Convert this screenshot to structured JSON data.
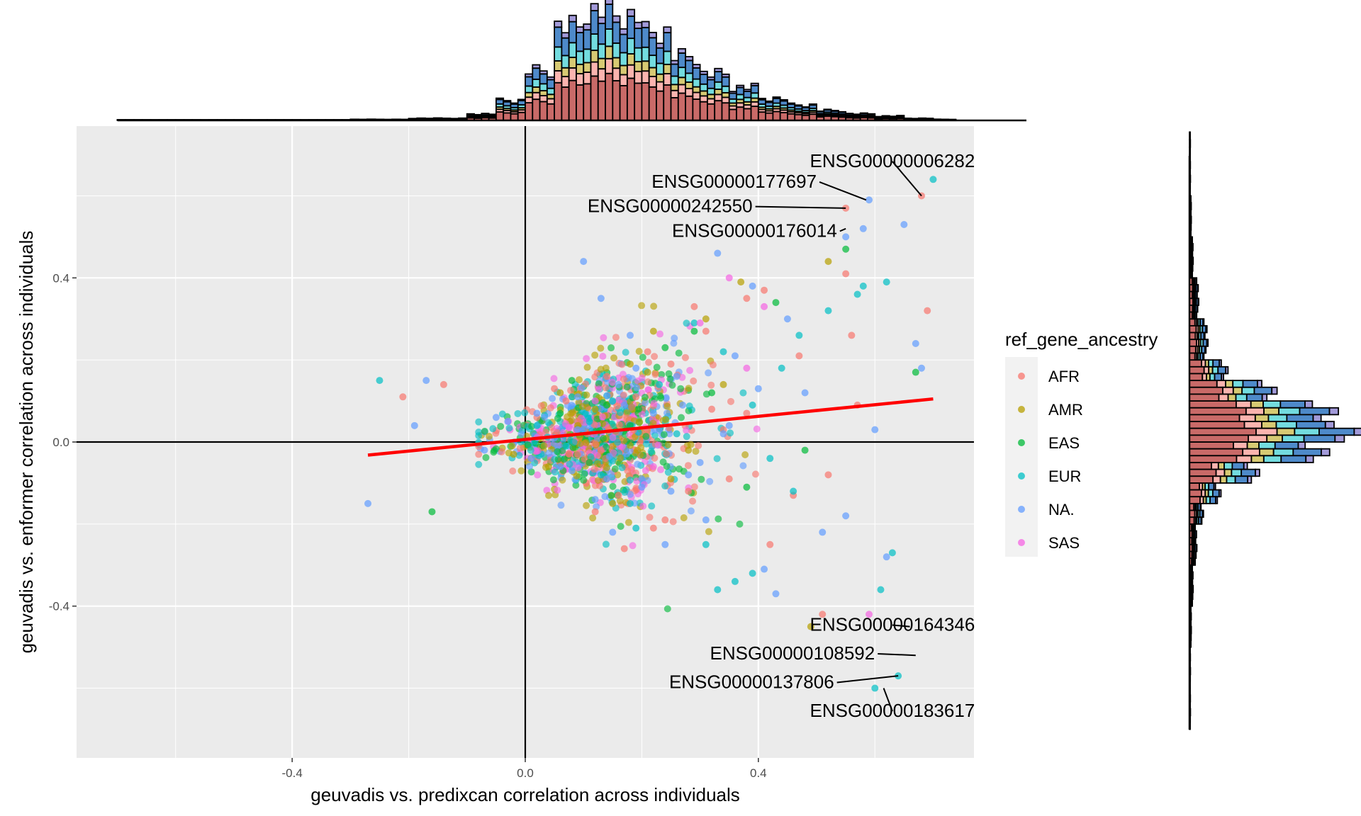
{
  "chart_data": {
    "type": "scatter",
    "title": "",
    "xlabel": "geuvadis vs. predixcan correlation across individuals",
    "ylabel": "geuvadis vs. enformer correlation across individuals",
    "xlim": [
      -0.77,
      0.77
    ],
    "ylim": [
      -0.77,
      0.77
    ],
    "xticks": [
      {
        "value": -0.4,
        "label": "-0.4"
      },
      {
        "value": 0.0,
        "label": "0.0"
      },
      {
        "value": 0.4,
        "label": "0.4"
      }
    ],
    "yticks": [
      {
        "value": -0.4,
        "label": "-0.4"
      },
      {
        "value": 0.0,
        "label": "0.0"
      },
      {
        "value": 0.4,
        "label": "0.4"
      }
    ],
    "grid": true,
    "reference_lines": {
      "x": 0,
      "y": 0
    },
    "trend_line": {
      "color": "#ff0000",
      "x": [
        -0.27,
        0.7
      ],
      "y": [
        -0.032,
        0.105
      ]
    },
    "legend": {
      "title": "ref_gene_ancestry",
      "position": "right",
      "entries": [
        {
          "name": "AFR",
          "color": "#F8766D"
        },
        {
          "name": "AMR",
          "color": "#B79F00"
        },
        {
          "name": "EAS",
          "color": "#00BA38"
        },
        {
          "name": "EUR",
          "color": "#00BFC4"
        },
        {
          "name": "NA.",
          "color": "#619CFF"
        },
        {
          "name": "SAS",
          "color": "#F564E3"
        }
      ]
    },
    "series": [
      {
        "name": "AFR",
        "color": "#F8766D",
        "x": [
          0.68,
          0.55,
          0.69,
          0.47,
          0.56,
          0.38,
          0.41,
          0.55,
          -0.14,
          -0.21,
          0.31,
          0.32,
          0.35,
          0.46,
          0.51,
          0.42,
          0.17,
          0.22,
          0.24,
          0.28,
          0.05,
          0.09,
          0.13,
          0.19,
          0.34,
          0.38,
          0.52,
          0.57,
          0.25,
          0.29,
          0.12,
          0.16,
          0.09,
          0.02,
          0.07,
          0.11,
          0.14,
          0.21
        ],
        "y": [
          0.6,
          0.57,
          0.32,
          0.21,
          0.26,
          0.35,
          0.37,
          0.41,
          0.14,
          0.11,
          0.27,
          0.08,
          -0.09,
          -0.13,
          -0.42,
          -0.25,
          -0.26,
          -0.21,
          -0.19,
          -0.12,
          0.13,
          0.05,
          -0.02,
          0.11,
          0.03,
          0.07,
          -0.08,
          0.09,
          0.19,
          0.33,
          -0.17,
          -0.13,
          -0.03,
          0.06,
          0.1,
          -0.05,
          0.16,
          0.22
        ]
      },
      {
        "name": "AMR",
        "color": "#B79F00",
        "x": [
          0.52,
          0.49,
          0.37,
          0.31,
          0.22,
          0.18,
          0.12,
          0.06,
          -0.02,
          0.25,
          0.15,
          0.09,
          0.34,
          0.28,
          0.04,
          0.21
        ],
        "y": [
          0.44,
          -0.45,
          0.39,
          0.3,
          0.27,
          0.19,
          0.08,
          0.12,
          -0.03,
          -0.09,
          -0.15,
          0.04,
          0.14,
          -0.02,
          -0.06,
          0.17
        ]
      },
      {
        "name": "EAS",
        "color": "#00BA38",
        "x": [
          0.55,
          0.67,
          0.29,
          0.43,
          0.08,
          0.18,
          0.11,
          -0.16,
          0.32,
          0.24,
          0.48,
          0.14,
          0.06,
          0.38
        ],
        "y": [
          0.47,
          0.17,
          0.27,
          0.34,
          0.15,
          0.04,
          -0.05,
          -0.17,
          0.12,
          0.23,
          -0.02,
          0.09,
          0.07,
          -0.11
        ]
      },
      {
        "name": "EUR",
        "color": "#00BFC4",
        "x": [
          0.7,
          0.64,
          0.6,
          0.63,
          0.61,
          -0.25,
          0.58,
          0.62,
          0.57,
          0.52,
          0.47,
          0.44,
          0.39,
          0.36,
          0.33,
          0.29,
          0.23,
          0.19,
          0.15,
          0.11,
          0.07,
          0.02,
          0.42,
          0.46,
          0.34,
          0.26,
          0.13,
          0.08,
          0.18,
          0.39,
          0.31
        ],
        "y": [
          0.64,
          -0.57,
          -0.6,
          -0.27,
          -0.36,
          0.15,
          0.38,
          0.39,
          0.36,
          0.32,
          0.26,
          0.18,
          -0.32,
          -0.34,
          -0.36,
          0.29,
          0.14,
          -0.21,
          0.1,
          0.05,
          -0.01,
          0.04,
          -0.04,
          -0.12,
          0.22,
          0.02,
          -0.08,
          0.11,
          -0.15,
          0.09,
          -0.25
        ]
      },
      {
        "name": "NA.",
        "color": "#619CFF",
        "x": [
          0.59,
          0.55,
          0.58,
          0.65,
          0.67,
          0.68,
          -0.27,
          -0.19,
          -0.17,
          0.1,
          0.13,
          0.33,
          0.45,
          0.39,
          0.43,
          0.51,
          0.6,
          0.08,
          0.17,
          0.2,
          0.26,
          0.31,
          0.36,
          0.4,
          0.05,
          0.01,
          -0.03,
          -0.07,
          0.12,
          0.22,
          0.28,
          0.34,
          0.15,
          0.24,
          0.02,
          0.09,
          0.18,
          0.3,
          0.41,
          0.48,
          0.55,
          0.62,
          0.09,
          0.14,
          0.19,
          0.27,
          -0.05,
          0.06,
          0.16,
          0.25,
          0.35
        ],
        "y": [
          0.59,
          0.5,
          0.52,
          0.53,
          0.24,
          0.18,
          -0.15,
          0.04,
          0.15,
          0.44,
          0.35,
          0.46,
          0.3,
          0.38,
          -0.37,
          -0.22,
          0.03,
          -0.07,
          0.09,
          -0.11,
          0.16,
          -0.19,
          0.21,
          0.13,
          0.01,
          -0.04,
          0.05,
          -0.02,
          -0.14,
          0.07,
          -0.08,
          0.02,
          -0.22,
          -0.25,
          0.07,
          0.11,
          0.26,
          -0.05,
          -0.31,
          0.12,
          -0.18,
          -0.28,
          0.03,
          -0.09,
          0.18,
          0.09,
          0.06,
          -0.06,
          0.14,
          -0.12,
          0.04
        ]
      },
      {
        "name": "SAS",
        "color": "#F564E3",
        "x": [
          0.41,
          0.35,
          0.3,
          0.59,
          0.12,
          0.22,
          0.38
        ],
        "y": [
          0.33,
          0.4,
          0.29,
          -0.42,
          0.1,
          -0.06,
          0.18
        ]
      }
    ],
    "annotations": [
      {
        "text": "ENSG00000006282",
        "px": 0.68,
        "py": 0.6,
        "lx": 0.63,
        "ly": 0.67,
        "anchor": "middle"
      },
      {
        "text": "ENSG00000177697",
        "px": 0.585,
        "py": 0.59,
        "lx": 0.5,
        "ly": 0.62,
        "anchor": "end"
      },
      {
        "text": "ENSG00000242550",
        "px": 0.55,
        "py": 0.57,
        "lx": 0.39,
        "ly": 0.56,
        "anchor": "end"
      },
      {
        "text": "ENSG00000176014",
        "px": 0.55,
        "py": 0.52,
        "lx": 0.535,
        "ly": 0.5,
        "anchor": "end"
      },
      {
        "text": "ENSG00000164346",
        "px": 0.66,
        "py": -0.45,
        "lx": 0.63,
        "ly": -0.46,
        "anchor": "middle"
      },
      {
        "text": "ENSG00000108592",
        "px": 0.67,
        "py": -0.52,
        "lx": 0.6,
        "ly": -0.53,
        "anchor": "end"
      },
      {
        "text": "ENSG00000137806",
        "px": 0.64,
        "py": -0.57,
        "lx": 0.53,
        "ly": -0.6,
        "anchor": "end"
      },
      {
        "text": "ENSG00000183617",
        "px": 0.615,
        "py": -0.6,
        "lx": 0.63,
        "ly": -0.67,
        "anchor": "middle"
      }
    ],
    "marginal_top": {
      "type": "histogram",
      "note": "stacked density of x by ref_gene_ancestry",
      "bins_x": [
        -0.7,
        -0.6,
        -0.5,
        -0.4,
        -0.3,
        -0.2,
        -0.1,
        -0.05,
        0.0,
        0.05,
        0.1,
        0.15,
        0.2,
        0.25,
        0.3,
        0.35,
        0.4,
        0.45,
        0.5,
        0.55,
        0.6,
        0.65,
        0.7
      ],
      "counts": [
        0.5,
        0.5,
        0.5,
        0.5,
        1,
        2,
        6,
        18,
        45,
        85,
        100,
        95,
        80,
        58,
        42,
        30,
        20,
        14,
        9,
        6,
        4,
        2,
        1
      ]
    },
    "marginal_right": {
      "type": "histogram",
      "note": "stacked density of y by ref_gene_ancestry",
      "bins_y": [
        -0.7,
        -0.6,
        -0.5,
        -0.4,
        -0.3,
        -0.2,
        -0.15,
        -0.1,
        -0.05,
        0.0,
        0.05,
        0.1,
        0.15,
        0.2,
        0.3,
        0.4,
        0.5,
        0.6,
        0.7
      ],
      "counts": [
        0.5,
        0.5,
        1,
        2,
        4,
        8,
        18,
        40,
        80,
        100,
        85,
        50,
        22,
        10,
        5,
        2,
        1,
        0.5,
        0.5
      ]
    }
  }
}
